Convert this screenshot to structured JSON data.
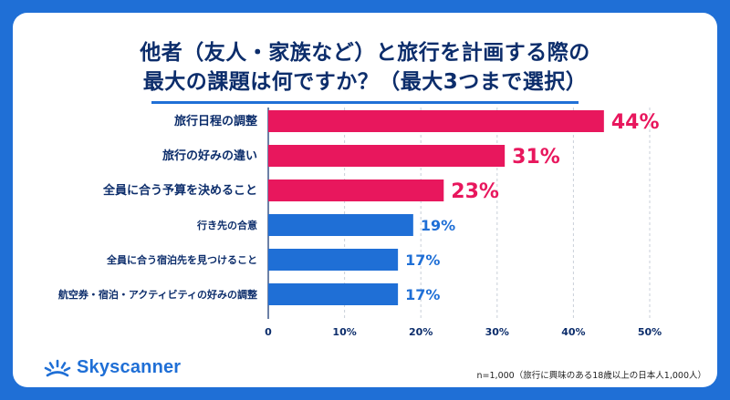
{
  "title_line1": "他者（友人・家族など）と旅行を計画する際の",
  "title_line2": "最大の課題は何ですか？（最大3つまで選択）",
  "brand": {
    "name": "Skyscanner",
    "color": "#1f6fd6"
  },
  "footnote": "n=1,000（旅行に興味のある18歳以上の日本人1,000人）",
  "colors": {
    "highlight": "#e8175d",
    "normal": "#1f6fd6",
    "text": "#0c2d6b",
    "frame_bg": "#1f6fd6"
  },
  "chart_data": {
    "type": "bar",
    "orientation": "horizontal",
    "categories": [
      "旅行日程の調整",
      "旅行の好みの違い",
      "全員に合う予算を決めること",
      "行き先の合意",
      "全員に合う宿泊先を見つけること",
      "航空券・宿泊・アクティビティの好みの調整"
    ],
    "values": [
      44,
      31,
      23,
      19,
      17,
      17
    ],
    "value_labels": [
      "44%",
      "31%",
      "23%",
      "19%",
      "17%",
      "17%"
    ],
    "highlighted": [
      true,
      true,
      true,
      false,
      false,
      false
    ],
    "xlim": [
      0,
      50
    ],
    "xticks": [
      0,
      10,
      20,
      30,
      40,
      50
    ],
    "xtick_labels": [
      "0",
      "10%",
      "20%",
      "30%",
      "40%",
      "50%"
    ],
    "grid": true,
    "xlabel": "",
    "ylabel": ""
  }
}
